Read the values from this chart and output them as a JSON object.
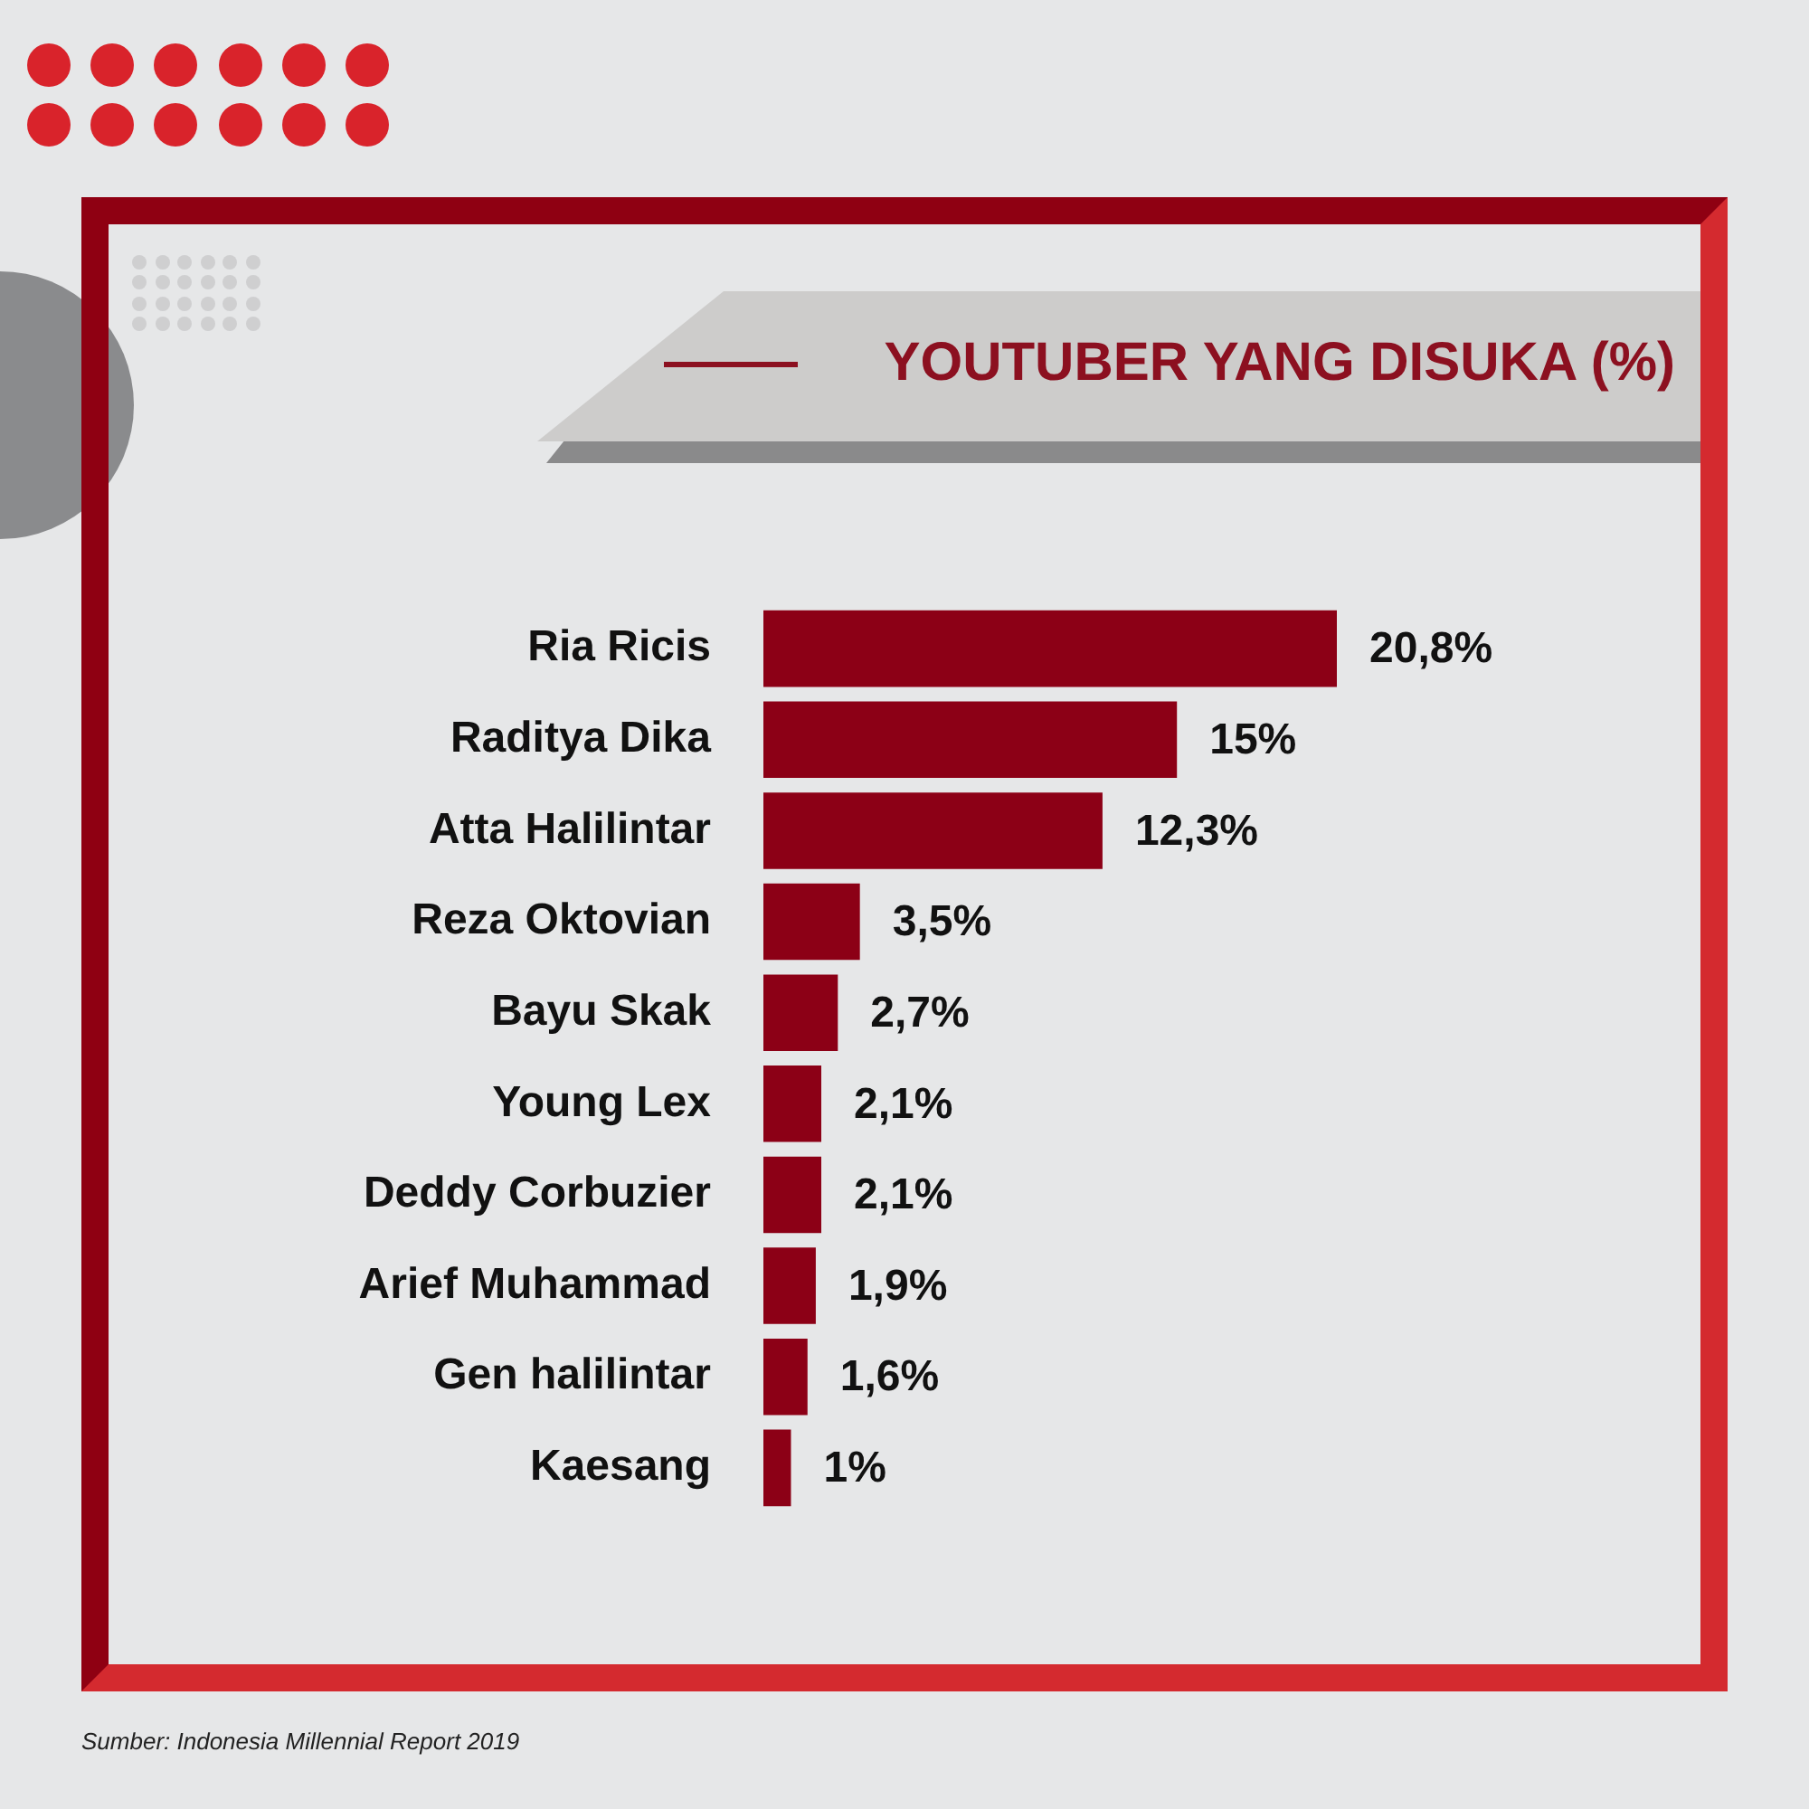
{
  "chart_data": {
    "type": "bar",
    "orientation": "horizontal",
    "title": "YOUTUBER YANG DISUKA (%)",
    "categories": [
      "Ria Ricis",
      "Raditya Dika",
      "Atta Halilintar",
      "Reza Oktovian",
      "Bayu Skak",
      "Young Lex",
      "Deddy Corbuzier",
      "Arief Muhammad",
      "Gen halilintar",
      "Kaesang"
    ],
    "values": [
      20.8,
      15,
      12.3,
      3.5,
      2.7,
      2.1,
      2.1,
      1.9,
      1.6,
      1
    ],
    "value_labels": [
      "20,8%",
      "15%",
      "12,3%",
      "3,5%",
      "2,7%",
      "2,1%",
      "2,1%",
      "1,9%",
      "1,6%",
      "1%"
    ],
    "color": "#8c0016",
    "grid": false,
    "legend": false,
    "tick_labels": "y",
    "annotations": [
      "Sumber: Indonesia Millennial Report 2019"
    ]
  }
}
